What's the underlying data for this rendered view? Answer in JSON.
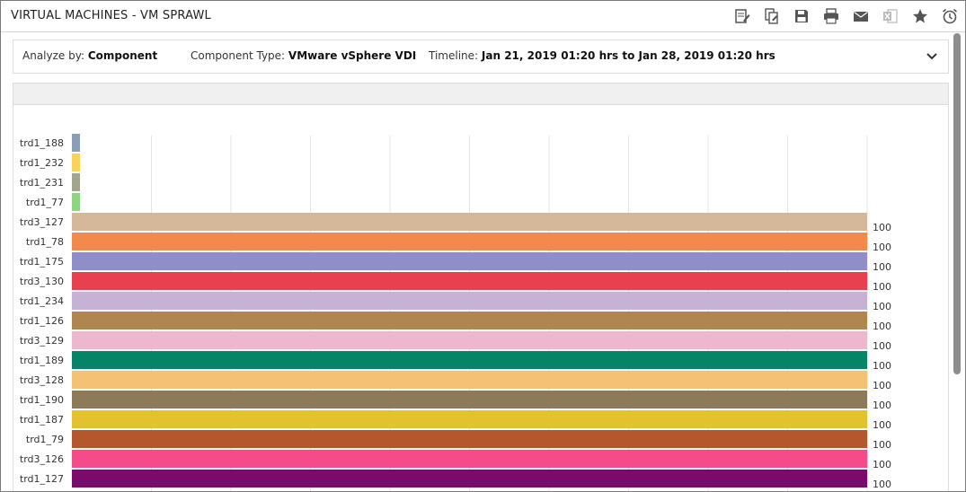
{
  "window": {
    "title": "VIRTUAL MACHINES - VM SPRAWL"
  },
  "toolbar": [
    {
      "name": "edit-report-icon"
    },
    {
      "name": "copy-report-icon"
    },
    {
      "name": "save-icon"
    },
    {
      "name": "print-icon"
    },
    {
      "name": "email-icon"
    },
    {
      "name": "excel-export-icon"
    },
    {
      "name": "favorite-star-icon"
    },
    {
      "name": "schedule-alarm-icon"
    }
  ],
  "filters": {
    "analyze_by_label": "Analyze by:",
    "analyze_by_value": "Component",
    "component_type_label": "Component Type:",
    "component_type_value": "VMware vSphere VDI",
    "timeline_label": "Timeline:",
    "timeline_value": "Jan 21, 2019 01:20 hrs to Jan 28, 2019 01:20 hrs"
  },
  "chart_data": {
    "type": "bar",
    "orientation": "horizontal",
    "xlim": [
      0,
      100
    ],
    "grid": true,
    "categories": [
      "trd1_188",
      "trd1_232",
      "trd1_231",
      "trd1_77",
      "trd3_127",
      "trd1_78",
      "trd1_175",
      "trd3_130",
      "trd1_234",
      "trd1_126",
      "trd3_129",
      "trd1_189",
      "trd3_128",
      "trd1_190",
      "trd1_187",
      "trd1_79",
      "trd3_126",
      "trd1_127"
    ],
    "values": [
      1,
      1,
      1,
      1,
      100,
      100,
      100,
      100,
      100,
      100,
      100,
      100,
      100,
      100,
      100,
      100,
      100,
      100
    ],
    "value_labels": [
      "",
      "",
      "",
      "",
      "100",
      "100",
      "100",
      "100",
      "100",
      "100",
      "100",
      "100",
      "100",
      "100",
      "100",
      "100",
      "100",
      "100"
    ],
    "colors": [
      "#8b9eb7",
      "#f7d35a",
      "#a2a58f",
      "#8fd47e",
      "#d5b899",
      "#f3894a",
      "#8f8ec9",
      "#e8404e",
      "#c6b2d2",
      "#b0854f",
      "#ebb8cf",
      "#068466",
      "#f3c275",
      "#8c7a5a",
      "#e3c232",
      "#b5572d",
      "#f64b8a",
      "#7a0a6c"
    ]
  }
}
